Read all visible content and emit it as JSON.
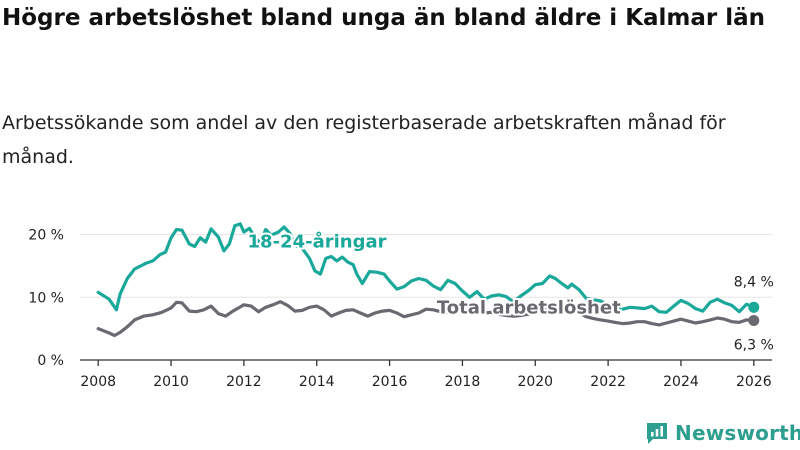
{
  "title": "Högre arbetslöshet bland unga än bland äldre i Kalmar län",
  "subtitle": "Arbetssökande som andel av den registerbaserade arbetskraften månad för månad.",
  "brand": "Newsworthy",
  "colors": {
    "youth": "#1aa89a",
    "total": "#6b6870",
    "axis": "#333333",
    "grid": "#e5e5e5",
    "brand": "#2d9e8f"
  },
  "chart_data": {
    "type": "line",
    "title": "Högre arbetslöshet bland unga än bland äldre i Kalmar län",
    "xlabel": "",
    "ylabel": "",
    "xlim": [
      2007.5,
      2026.5
    ],
    "ylim": [
      0,
      22
    ],
    "x_ticks": [
      2008,
      2010,
      2012,
      2014,
      2016,
      2018,
      2020,
      2022,
      2024,
      2026
    ],
    "x_tick_labels": [
      "2008",
      "2010",
      "2012",
      "2014",
      "2016",
      "2018",
      "2020",
      "2022",
      "2024",
      "2026"
    ],
    "y_ticks": [
      0,
      10,
      20
    ],
    "y_tick_labels": [
      "0 %",
      "10 %",
      "20 %"
    ],
    "series": [
      {
        "name": "18-24-åringar",
        "label": "18-24-åringar",
        "end_label": "8,4 %",
        "points": [
          [
            2008.0,
            10.8
          ],
          [
            2008.3,
            9.7
          ],
          [
            2008.5,
            8.0
          ],
          [
            2008.6,
            10.5
          ],
          [
            2008.8,
            13.0
          ],
          [
            2009.0,
            14.5
          ],
          [
            2009.3,
            15.4
          ],
          [
            2009.5,
            15.8
          ],
          [
            2009.7,
            16.8
          ],
          [
            2009.85,
            17.2
          ],
          [
            2010.0,
            19.5
          ],
          [
            2010.15,
            20.8
          ],
          [
            2010.3,
            20.7
          ],
          [
            2010.5,
            18.5
          ],
          [
            2010.65,
            18.1
          ],
          [
            2010.8,
            19.5
          ],
          [
            2010.95,
            18.8
          ],
          [
            2011.1,
            20.9
          ],
          [
            2011.3,
            19.6
          ],
          [
            2011.45,
            17.4
          ],
          [
            2011.6,
            18.5
          ],
          [
            2011.75,
            21.4
          ],
          [
            2011.9,
            21.7
          ],
          [
            2012.0,
            20.4
          ],
          [
            2012.15,
            21.0
          ],
          [
            2012.3,
            19.6
          ],
          [
            2012.45,
            18.6
          ],
          [
            2012.6,
            20.8
          ],
          [
            2012.75,
            19.9
          ],
          [
            2012.95,
            20.4
          ],
          [
            2013.1,
            21.2
          ],
          [
            2013.25,
            20.3
          ],
          [
            2013.4,
            18.3
          ],
          [
            2013.6,
            17.8
          ],
          [
            2013.8,
            16.2
          ],
          [
            2013.95,
            14.2
          ],
          [
            2014.1,
            13.7
          ],
          [
            2014.25,
            16.2
          ],
          [
            2014.4,
            16.5
          ],
          [
            2014.55,
            15.8
          ],
          [
            2014.7,
            16.4
          ],
          [
            2014.85,
            15.6
          ],
          [
            2015.0,
            15.2
          ],
          [
            2015.1,
            13.7
          ],
          [
            2015.25,
            12.2
          ],
          [
            2015.45,
            14.1
          ],
          [
            2015.65,
            14.0
          ],
          [
            2015.85,
            13.7
          ],
          [
            2016.0,
            12.6
          ],
          [
            2016.2,
            11.3
          ],
          [
            2016.4,
            11.7
          ],
          [
            2016.6,
            12.6
          ],
          [
            2016.8,
            13.0
          ],
          [
            2017.0,
            12.7
          ],
          [
            2017.2,
            11.8
          ],
          [
            2017.4,
            11.2
          ],
          [
            2017.6,
            12.7
          ],
          [
            2017.8,
            12.2
          ],
          [
            2018.0,
            11.0
          ],
          [
            2018.2,
            10.0
          ],
          [
            2018.4,
            10.9
          ],
          [
            2018.6,
            9.7
          ],
          [
            2018.8,
            10.2
          ],
          [
            2019.0,
            10.4
          ],
          [
            2019.2,
            10.1
          ],
          [
            2019.4,
            9.3
          ],
          [
            2019.6,
            10.2
          ],
          [
            2019.8,
            11.0
          ],
          [
            2020.0,
            12.0
          ],
          [
            2020.2,
            12.2
          ],
          [
            2020.4,
            13.4
          ],
          [
            2020.55,
            13.0
          ],
          [
            2020.7,
            12.3
          ],
          [
            2020.9,
            11.5
          ],
          [
            2021.0,
            12.1
          ],
          [
            2021.2,
            11.2
          ],
          [
            2021.4,
            9.8
          ],
          [
            2021.6,
            9.6
          ],
          [
            2021.8,
            9.4
          ],
          [
            2022.0,
            8.7
          ],
          [
            2022.2,
            8.5
          ],
          [
            2022.4,
            8.1
          ],
          [
            2022.6,
            8.4
          ],
          [
            2022.8,
            8.3
          ],
          [
            2023.0,
            8.2
          ],
          [
            2023.2,
            8.6
          ],
          [
            2023.4,
            7.7
          ],
          [
            2023.6,
            7.6
          ],
          [
            2023.8,
            8.6
          ],
          [
            2024.0,
            9.5
          ],
          [
            2024.2,
            9.0
          ],
          [
            2024.4,
            8.2
          ],
          [
            2024.6,
            7.8
          ],
          [
            2024.8,
            9.2
          ],
          [
            2025.0,
            9.7
          ],
          [
            2025.2,
            9.1
          ],
          [
            2025.4,
            8.7
          ],
          [
            2025.6,
            7.7
          ],
          [
            2025.8,
            8.9
          ],
          [
            2026.0,
            8.4
          ]
        ]
      },
      {
        "name": "Total arbetslöshet",
        "label": "Total arbetslöshet",
        "end_label": "6,3 %",
        "points": [
          [
            2008.0,
            5.0
          ],
          [
            2008.3,
            4.3
          ],
          [
            2008.45,
            3.9
          ],
          [
            2008.6,
            4.4
          ],
          [
            2008.8,
            5.3
          ],
          [
            2009.0,
            6.4
          ],
          [
            2009.25,
            7.0
          ],
          [
            2009.5,
            7.2
          ],
          [
            2009.75,
            7.6
          ],
          [
            2010.0,
            8.3
          ],
          [
            2010.15,
            9.2
          ],
          [
            2010.3,
            9.1
          ],
          [
            2010.5,
            7.8
          ],
          [
            2010.7,
            7.7
          ],
          [
            2010.9,
            8.0
          ],
          [
            2011.1,
            8.6
          ],
          [
            2011.3,
            7.4
          ],
          [
            2011.5,
            7.0
          ],
          [
            2011.7,
            7.8
          ],
          [
            2012.0,
            8.8
          ],
          [
            2012.2,
            8.6
          ],
          [
            2012.4,
            7.7
          ],
          [
            2012.6,
            8.4
          ],
          [
            2012.8,
            8.8
          ],
          [
            2013.0,
            9.3
          ],
          [
            2013.2,
            8.7
          ],
          [
            2013.4,
            7.8
          ],
          [
            2013.6,
            7.9
          ],
          [
            2013.8,
            8.4
          ],
          [
            2014.0,
            8.6
          ],
          [
            2014.2,
            8.0
          ],
          [
            2014.4,
            7.0
          ],
          [
            2014.6,
            7.5
          ],
          [
            2014.8,
            7.9
          ],
          [
            2015.0,
            8.0
          ],
          [
            2015.2,
            7.5
          ],
          [
            2015.4,
            7.0
          ],
          [
            2015.6,
            7.5
          ],
          [
            2015.8,
            7.8
          ],
          [
            2016.0,
            7.9
          ],
          [
            2016.2,
            7.5
          ],
          [
            2016.4,
            6.9
          ],
          [
            2016.6,
            7.2
          ],
          [
            2016.8,
            7.5
          ],
          [
            2017.0,
            8.1
          ],
          [
            2017.2,
            8.0
          ],
          [
            2017.4,
            7.7
          ],
          [
            2017.6,
            7.6
          ],
          [
            2017.8,
            7.8
          ],
          [
            2018.0,
            7.9
          ],
          [
            2018.2,
            7.7
          ],
          [
            2018.4,
            7.4
          ],
          [
            2018.6,
            7.5
          ],
          [
            2018.8,
            7.6
          ],
          [
            2019.0,
            7.3
          ],
          [
            2019.2,
            7.1
          ],
          [
            2019.4,
            7.0
          ],
          [
            2019.6,
            7.1
          ],
          [
            2019.8,
            7.3
          ],
          [
            2020.0,
            7.6
          ],
          [
            2020.2,
            8.0
          ],
          [
            2020.4,
            8.3
          ],
          [
            2020.6,
            8.2
          ],
          [
            2020.8,
            8.0
          ],
          [
            2021.0,
            7.8
          ],
          [
            2021.2,
            7.5
          ],
          [
            2021.4,
            6.9
          ],
          [
            2021.6,
            6.6
          ],
          [
            2021.8,
            6.4
          ],
          [
            2022.0,
            6.2
          ],
          [
            2022.2,
            6.0
          ],
          [
            2022.4,
            5.8
          ],
          [
            2022.6,
            5.9
          ],
          [
            2022.8,
            6.1
          ],
          [
            2023.0,
            6.1
          ],
          [
            2023.2,
            5.8
          ],
          [
            2023.4,
            5.6
          ],
          [
            2023.6,
            5.9
          ],
          [
            2023.8,
            6.2
          ],
          [
            2024.0,
            6.5
          ],
          [
            2024.2,
            6.2
          ],
          [
            2024.4,
            5.9
          ],
          [
            2024.6,
            6.1
          ],
          [
            2024.8,
            6.4
          ],
          [
            2025.0,
            6.7
          ],
          [
            2025.2,
            6.5
          ],
          [
            2025.4,
            6.1
          ],
          [
            2025.6,
            6.0
          ],
          [
            2025.8,
            6.4
          ],
          [
            2026.0,
            6.3
          ]
        ]
      }
    ],
    "annotations": [
      {
        "series": 0,
        "text": "18-24-åringar",
        "at_x": 2012.1,
        "at_y": 17.9,
        "anchor": "start"
      },
      {
        "series": 1,
        "text": "Total arbetslöshet",
        "at_x": 2017.3,
        "at_y": 7.4,
        "anchor": "start"
      }
    ]
  }
}
